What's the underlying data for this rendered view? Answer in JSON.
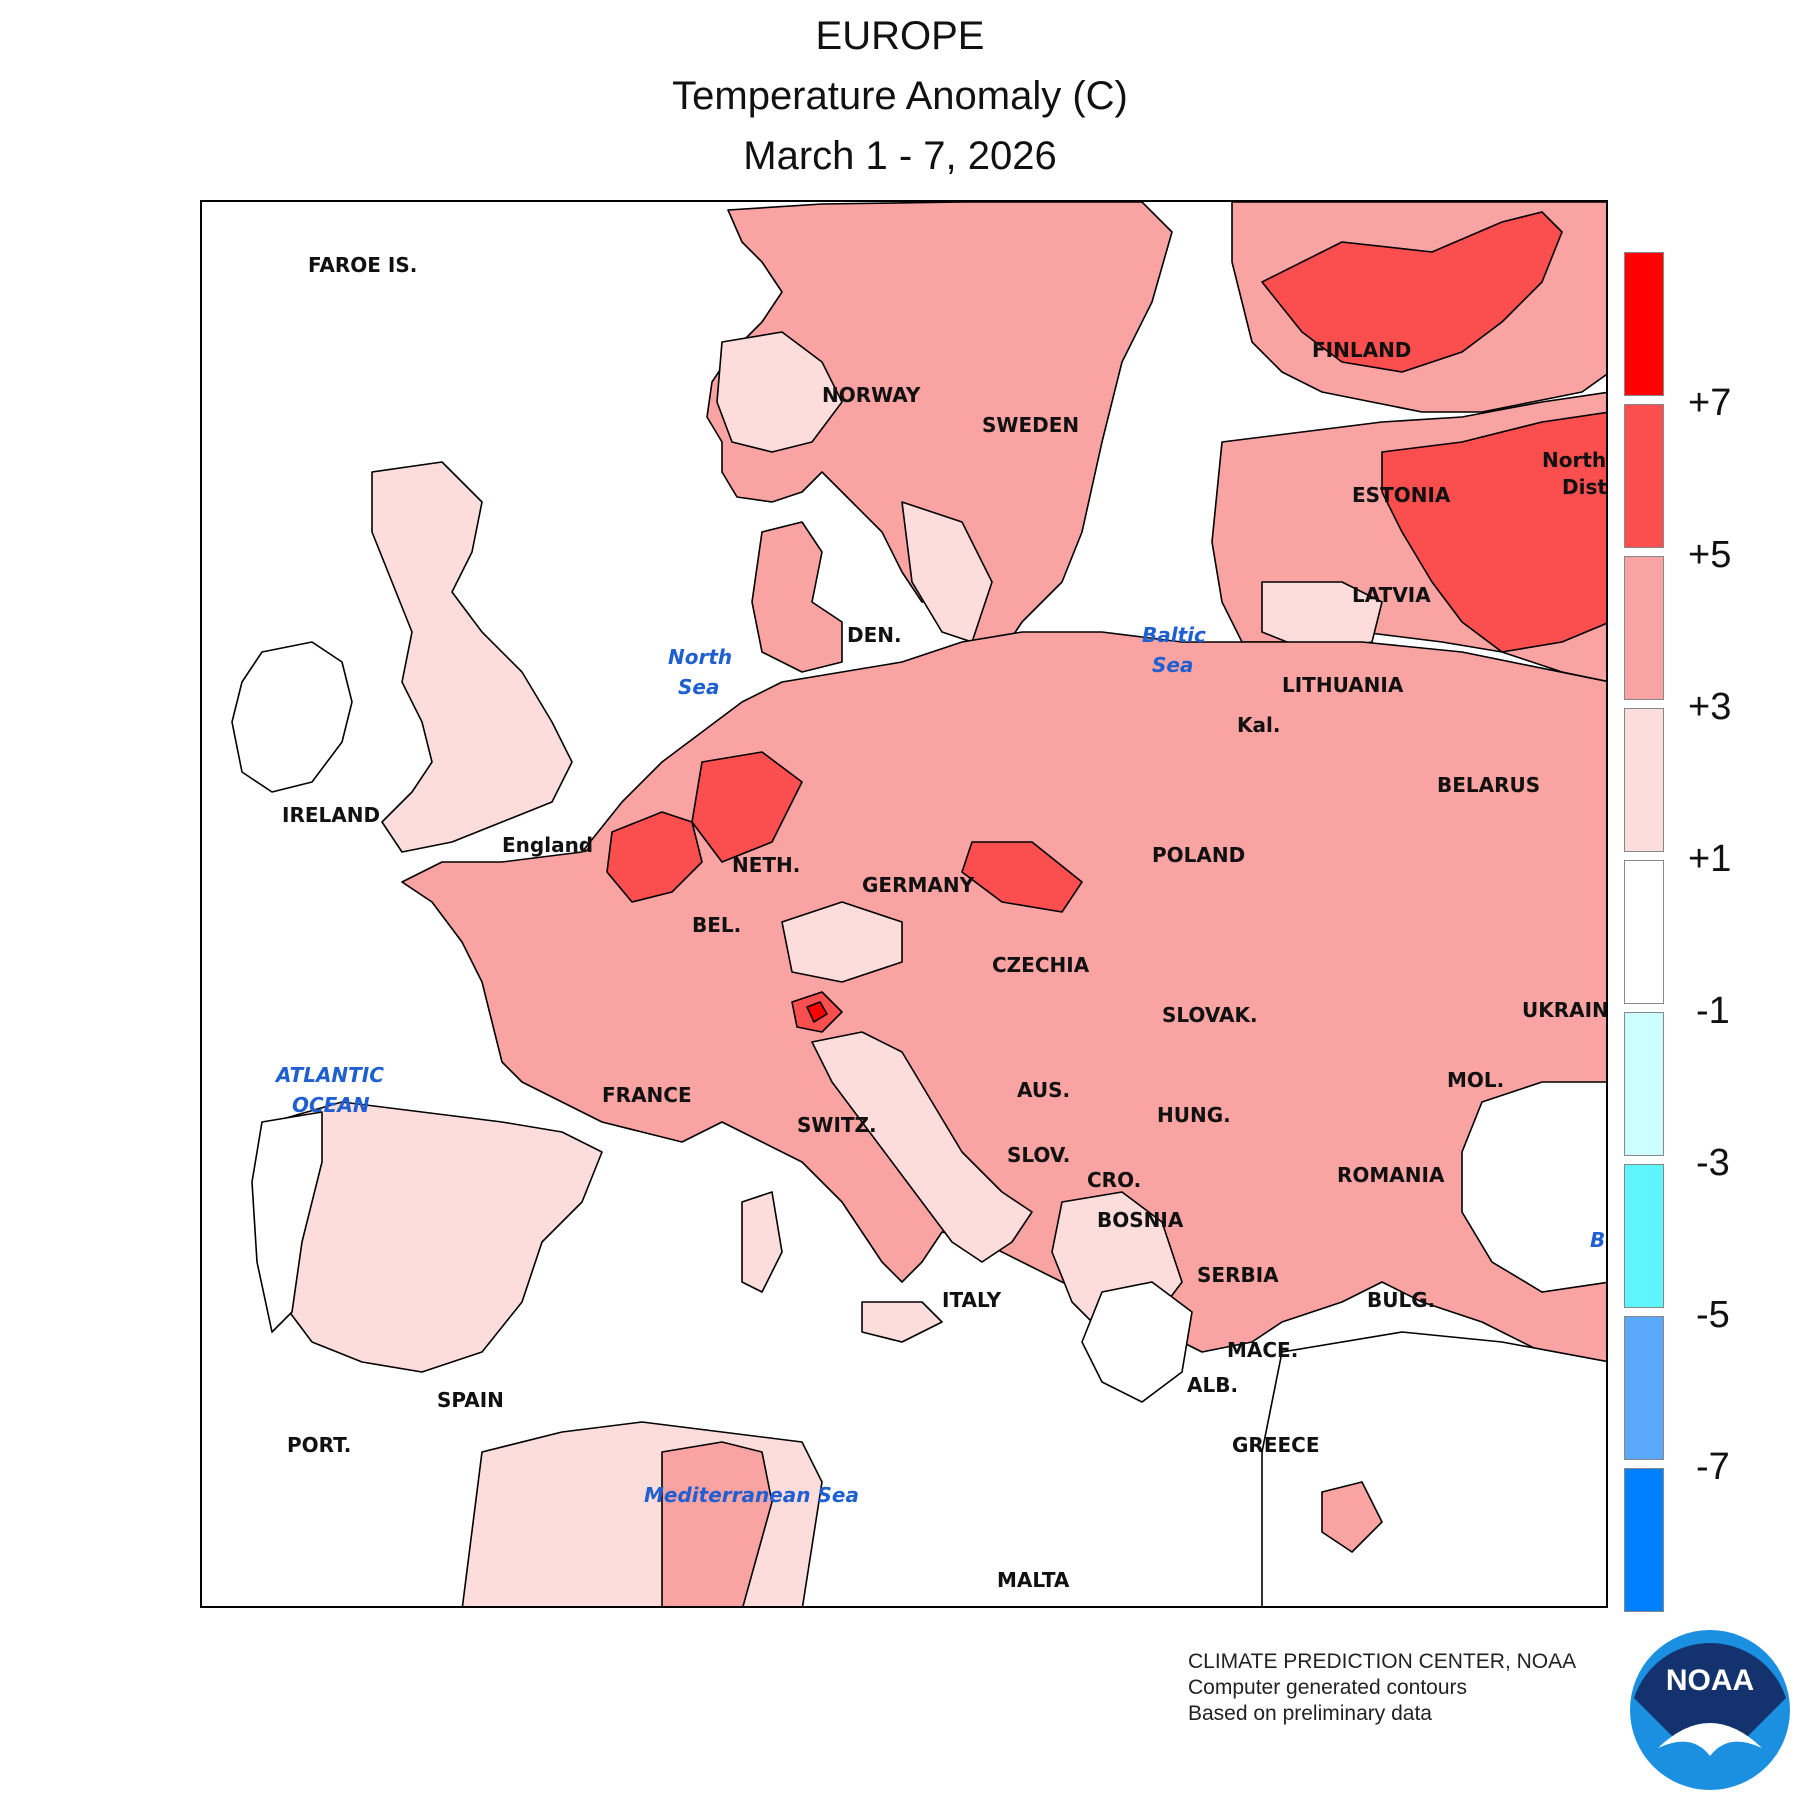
{
  "title": {
    "line1": "EUROPE",
    "line2": "Temperature Anomaly (C)",
    "line3": "March 1 - 7, 2026"
  },
  "map": {
    "country_labels": [
      "FAROE IS.",
      "NORWAY",
      "SWEDEN",
      "FINLAND",
      "ESTONIA",
      "LATVIA",
      "LITHUANIA",
      "Kal.",
      "BELARUS",
      "DEN.",
      "IRELAND",
      "England",
      "NETH.",
      "GERMANY",
      "BEL.",
      "POLAND",
      "CZECHIA",
      "SLOVAK.",
      "UKRAINE",
      "MOL.",
      "FRANCE",
      "SWITZ.",
      "AUS.",
      "HUNG.",
      "SLOV.",
      "CRO.",
      "ROMANIA",
      "BOSNIA",
      "SERBIA",
      "BULG.",
      "ITALY",
      "MACE.",
      "ALB.",
      "GREECE",
      "SPAIN",
      "PORT.",
      "MALTA",
      "Northw",
      "Distri"
    ],
    "sea_labels": [
      "North",
      "Sea",
      "Baltic",
      "Sea",
      "ATLANTIC",
      "OCEAN",
      "Mediterranean Sea",
      "B"
    ]
  },
  "legend": {
    "ticks": [
      "+7",
      "+5",
      "+3",
      "+1",
      "-1",
      "-3",
      "-5",
      "-7"
    ],
    "colors": [
      "#ff0000",
      "#fb4f4f",
      "#f9a3a3",
      "#fddcdc",
      "#ffffff",
      "#ccffff",
      "#5ff5ff",
      "#5ba8ff",
      "#0080ff"
    ]
  },
  "credits": {
    "line1": "CLIMATE PREDICTION CENTER, NOAA",
    "line2": "Computer generated contours",
    "line3": "Based on preliminary data"
  },
  "logo_text": "NOAA"
}
